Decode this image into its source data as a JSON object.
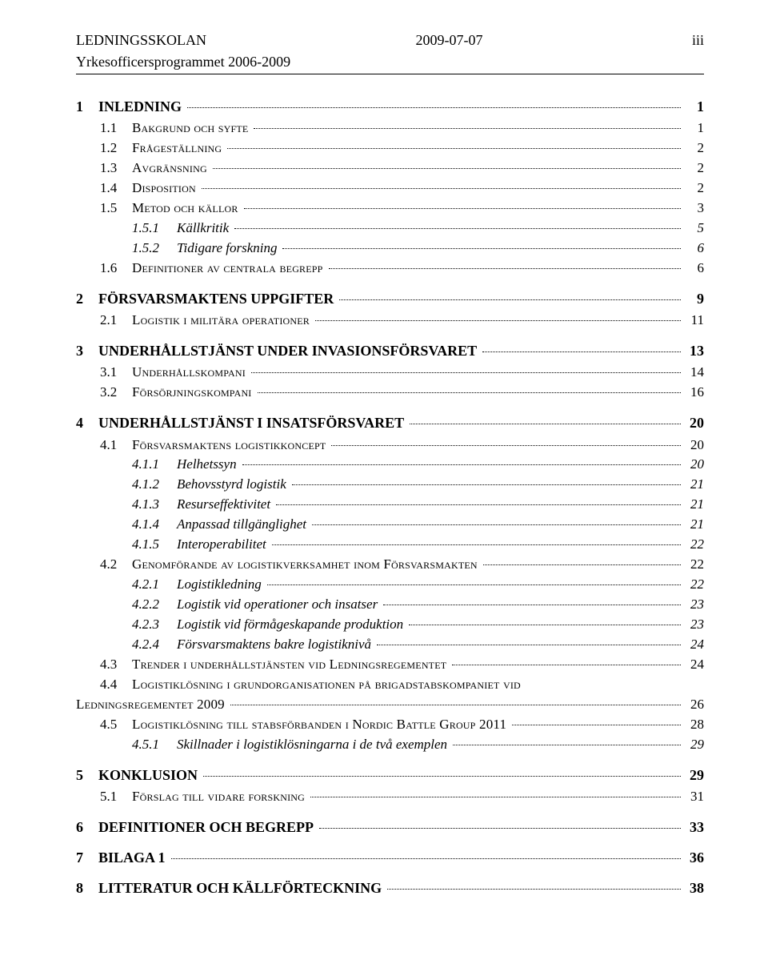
{
  "header": {
    "left": "LEDNINGSSKOLAN",
    "center": "2009-07-07",
    "right": "iii",
    "sub": "Yrkesofficersprogrammet 2006-2009"
  },
  "toc": [
    {
      "level": 1,
      "num": "1",
      "label": "INLEDNING",
      "page": "1"
    },
    {
      "level": 2,
      "num": "1.1",
      "label": "Bakgrund och syfte",
      "page": "1"
    },
    {
      "level": 2,
      "num": "1.2",
      "label": "Frågeställning",
      "page": "2"
    },
    {
      "level": 2,
      "num": "1.3",
      "label": "Avgränsning",
      "page": "2"
    },
    {
      "level": 2,
      "num": "1.4",
      "label": "Disposition",
      "page": "2"
    },
    {
      "level": 2,
      "num": "1.5",
      "label": "Metod och källor",
      "page": "3"
    },
    {
      "level": 3,
      "num": "1.5.1",
      "label": "Källkritik",
      "page": "5"
    },
    {
      "level": 3,
      "num": "1.5.2",
      "label": "Tidigare forskning",
      "page": "6"
    },
    {
      "level": 2,
      "num": "1.6",
      "label": "Definitioner av centrala begrepp",
      "page": "6"
    },
    {
      "level": 1,
      "num": "2",
      "label": "FÖRSVARSMAKTENS UPPGIFTER",
      "page": "9"
    },
    {
      "level": 2,
      "num": "2.1",
      "label": "Logistik i militära operationer",
      "page": "11"
    },
    {
      "level": 1,
      "num": "3",
      "label": "UNDERHÅLLSTJÄNST UNDER INVASIONSFÖRSVARET",
      "page": "13"
    },
    {
      "level": 2,
      "num": "3.1",
      "label": "Underhållskompani",
      "page": "14"
    },
    {
      "level": 2,
      "num": "3.2",
      "label": "Försörjningskompani",
      "page": "16"
    },
    {
      "level": 1,
      "num": "4",
      "label": "UNDERHÅLLSTJÄNST I INSATSFÖRSVARET",
      "page": "20"
    },
    {
      "level": 2,
      "num": "4.1",
      "label": "Försvarsmaktens logistikkoncept",
      "page": "20"
    },
    {
      "level": 3,
      "num": "4.1.1",
      "label": "Helhetssyn",
      "page": "20"
    },
    {
      "level": 3,
      "num": "4.1.2",
      "label": "Behovsstyrd logistik",
      "page": "21"
    },
    {
      "level": 3,
      "num": "4.1.3",
      "label": "Resurseffektivitet",
      "page": "21"
    },
    {
      "level": 3,
      "num": "4.1.4",
      "label": "Anpassad tillgänglighet",
      "page": "21"
    },
    {
      "level": 3,
      "num": "4.1.5",
      "label": "Interoperabilitet",
      "page": "22"
    },
    {
      "level": 2,
      "num": "4.2",
      "label": "Genomförande av logistikverksamhet inom Försvarsmakten",
      "page": "22"
    },
    {
      "level": 3,
      "num": "4.2.1",
      "label": "Logistikledning",
      "page": "22"
    },
    {
      "level": 3,
      "num": "4.2.2",
      "label": "Logistik vid operationer och insatser",
      "page": "23"
    },
    {
      "level": 3,
      "num": "4.2.3",
      "label": "Logistik vid förmågeskapande produktion",
      "page": "23"
    },
    {
      "level": 3,
      "num": "4.2.4",
      "label": "Försvarsmaktens bakre logistiknivå",
      "page": "24"
    },
    {
      "level": 2,
      "num": "4.3",
      "label": "Trender i underhållstjänsten vid Ledningsregementet",
      "page": "24"
    },
    {
      "level": 2,
      "num": "4.4",
      "label": "Logistiklösning i grundorganisationen på brigadstabskompaniet vid Ledningsregementet 2009",
      "page": "26",
      "wrap": true
    },
    {
      "level": 2,
      "num": "4.5",
      "label": "Logistiklösning till stabsförbanden i Nordic Battle Group 2011",
      "page": "28"
    },
    {
      "level": 3,
      "num": "4.5.1",
      "label": "Skillnader i logistiklösningarna i de två exemplen",
      "page": "29"
    },
    {
      "level": 1,
      "num": "5",
      "label": "KONKLUSION",
      "page": "29"
    },
    {
      "level": 2,
      "num": "5.1",
      "label": "Förslag till vidare forskning",
      "page": "31"
    },
    {
      "level": 1,
      "num": "6",
      "label": "DEFINITIONER OCH BEGREPP",
      "page": "33"
    },
    {
      "level": 1,
      "num": "7",
      "label": "BILAGA 1",
      "page": "36"
    },
    {
      "level": 1,
      "num": "8",
      "label": "LITTERATUR OCH KÄLLFÖRTECKNING",
      "page": "38"
    }
  ]
}
